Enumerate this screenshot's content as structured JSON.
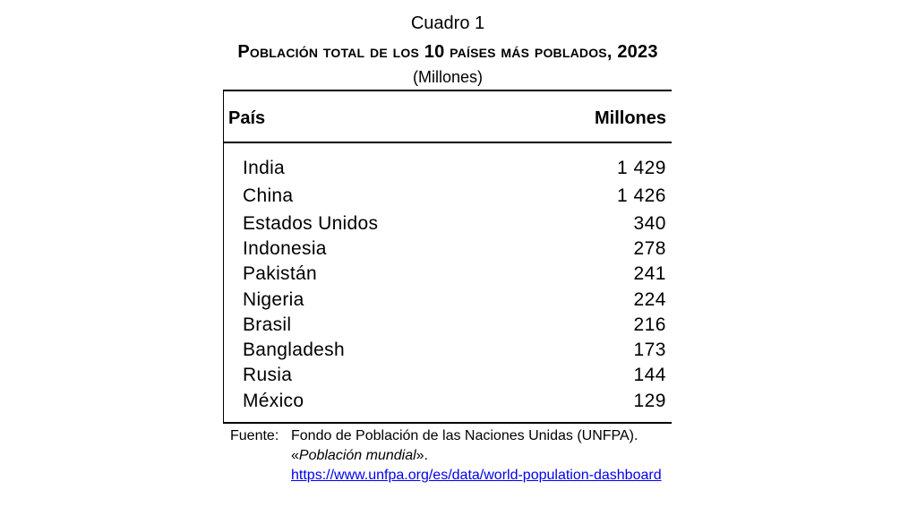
{
  "caption": "Cuadro 1",
  "title": "Población total de los 10 países más poblados, 2023",
  "units": "(Millones)",
  "table": {
    "header_country": "País",
    "header_value": "Millones"
  },
  "chart_data": {
    "type": "table",
    "title": "Población total de los 10 países más poblados, 2023",
    "columns": [
      "País",
      "Millones"
    ],
    "rows": [
      {
        "country": "India",
        "value_text": "1 429",
        "value": 1429
      },
      {
        "country": "China",
        "value_text": "1 426",
        "value": 1426
      },
      {
        "country": "Estados Unidos",
        "value_text": "340",
        "value": 340
      },
      {
        "country": "Indonesia",
        "value_text": "278",
        "value": 278
      },
      {
        "country": "Pakistán",
        "value_text": "241",
        "value": 241
      },
      {
        "country": "Nigeria",
        "value_text": "224",
        "value": 224
      },
      {
        "country": "Brasil",
        "value_text": "216",
        "value": 216
      },
      {
        "country": "Bangladesh",
        "value_text": "173",
        "value": 173
      },
      {
        "country": "Rusia",
        "value_text": "144",
        "value": 144
      },
      {
        "country": "México",
        "value_text": "129",
        "value": 129
      }
    ]
  },
  "source": {
    "label": "Fuente:",
    "text_before": "Fondo de Población de las Naciones Unidas (UNFPA). «",
    "italic": "Población mundial",
    "text_after": "».",
    "url": "https://www.unfpa.org/es/data/world-population-dashboard"
  }
}
